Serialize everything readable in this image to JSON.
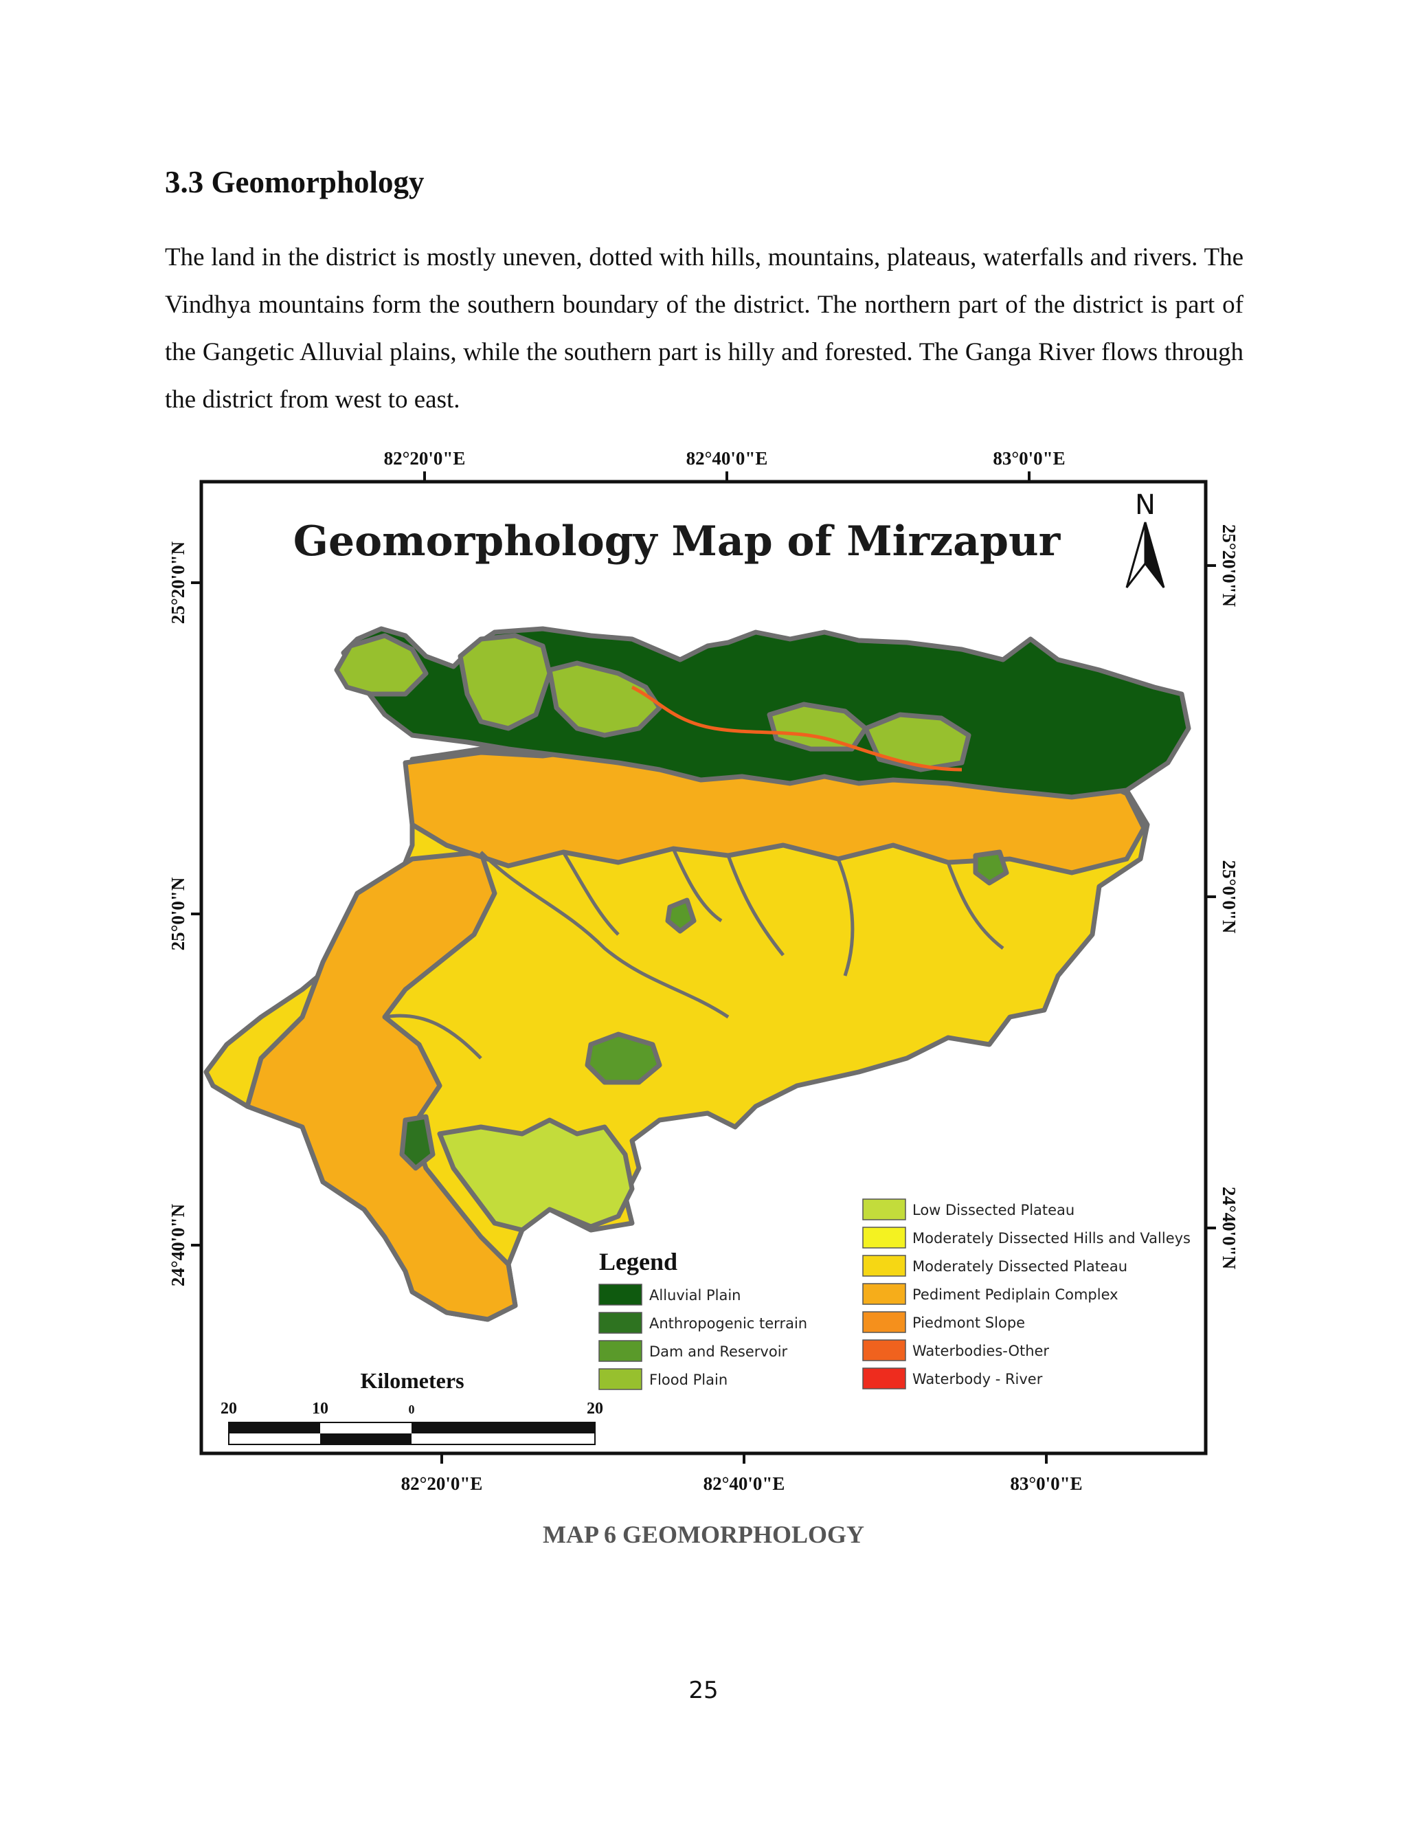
{
  "section": {
    "heading": "3.3 Geomorphology",
    "paragraph": "The land in the district is mostly uneven, dotted with hills, mountains, plateaus, waterfalls and rivers. The Vindhya mountains form the southern boundary of the district. The northern part of the district is part of the Gangetic Alluvial plains, while the southern part is hilly and forested. The Ganga River flows through the district from west to east."
  },
  "map": {
    "title": "Geomorphology Map of Mirzapur",
    "north_label": "N",
    "top_ticks": [
      "82°20'0\"E",
      "82°40'0\"E",
      "83°0'0\"E"
    ],
    "bottom_ticks": [
      "82°20'0\"E",
      "82°40'0\"E",
      "83°0'0\"E"
    ],
    "left_ticks": [
      "25°20'0\"N",
      "25°0'0\"N",
      "24°40'0\"N"
    ],
    "right_ticks": [
      "25°20'0\"N",
      "25°0'0\"N",
      "24°40'0\"N"
    ],
    "legend_title": "Legend",
    "legend_left": [
      {
        "label": "Alluvial Plain",
        "color": "#0f5a0f"
      },
      {
        "label": "Anthropogenic terrain",
        "color": "#2e7320"
      },
      {
        "label": "Dam and Reservoir",
        "color": "#5a9a2a"
      },
      {
        "label": "Flood Plain",
        "color": "#97c02e"
      }
    ],
    "legend_right": [
      {
        "label": "Low Dissected Plateau",
        "color": "#c3dc3b"
      },
      {
        "label": "Moderately Dissected Hills and Valleys",
        "color": "#f4f221"
      },
      {
        "label": "Moderately Dissected Plateau",
        "color": "#f6d714"
      },
      {
        "label": "Pediment Pediplain Complex",
        "color": "#f6ad1a"
      },
      {
        "label": "Piedmont Slope",
        "color": "#f5901c"
      },
      {
        "label": "Waterbodies-Other",
        "color": "#f0621e"
      },
      {
        "label": "Waterbody - River",
        "color": "#ee2c1e"
      }
    ],
    "scale": {
      "title": "Kilometers",
      "labels": [
        "20",
        "10",
        "0",
        "20"
      ]
    }
  },
  "caption": "MAP 6 GEOMORPHOLOGY",
  "page_number": "25"
}
